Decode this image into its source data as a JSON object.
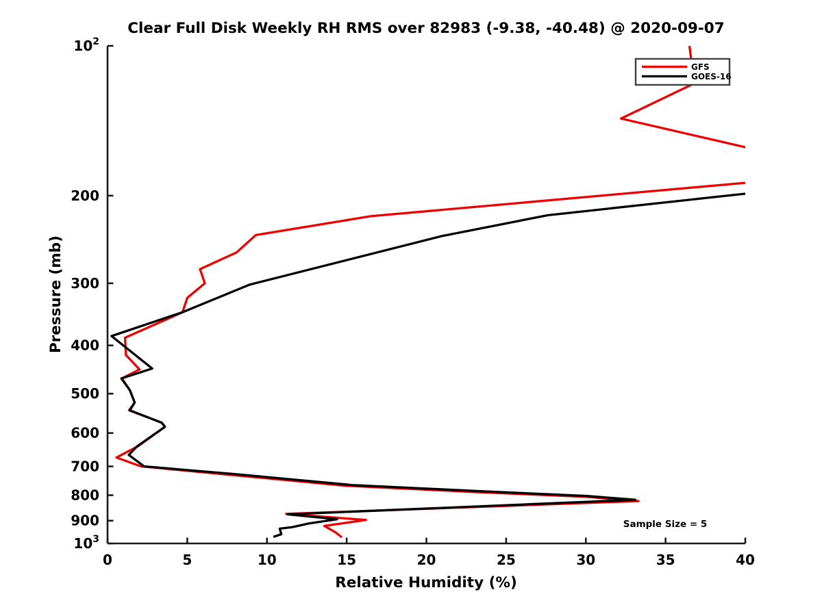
{
  "chart_data": {
    "type": "line",
    "title": "Clear Full Disk Weekly RH RMS over 82983 (-9.38, -40.48) @ 2020-09-07",
    "xlabel": "Relative Humidity (%)",
    "ylabel": "Pressure (mb)",
    "annotation": "Sample Size = 5",
    "xlim": [
      0,
      40
    ],
    "ylim_pressure_mb": [
      100,
      1000
    ],
    "y_scale": "log",
    "y_inverted": true,
    "grid": false,
    "legend_position": "top-right",
    "x_ticks": [
      0,
      5,
      10,
      15,
      20,
      25,
      30,
      35,
      40
    ],
    "x_tick_labels": [
      "0",
      "5",
      "10",
      "15",
      "20",
      "25",
      "30",
      "35",
      "40"
    ],
    "y_ticks": [
      100,
      200,
      300,
      400,
      500,
      600,
      700,
      800,
      900,
      1000
    ],
    "y_tick_labels": [
      "10^2",
      "200",
      "300",
      "400",
      "500",
      "600",
      "700",
      "800",
      "900",
      "10^3"
    ],
    "series": [
      {
        "name": "GFS",
        "color": "#EE0000",
        "points_pressure_rh": [
          [
            100,
            36.5
          ],
          [
            119,
            36.8
          ],
          [
            140,
            32.2
          ],
          [
            180,
            47.0
          ],
          [
            220,
            16.5
          ],
          [
            240,
            9.3
          ],
          [
            260,
            8.1
          ],
          [
            281,
            5.8
          ],
          [
            300,
            6.1
          ],
          [
            321,
            5.0
          ],
          [
            343,
            4.7
          ],
          [
            386,
            1.1
          ],
          [
            418,
            1.15
          ],
          [
            447,
            2.0
          ],
          [
            466,
            0.9
          ],
          [
            492,
            1.4
          ],
          [
            521,
            1.7
          ],
          [
            540,
            1.35
          ],
          [
            572,
            3.4
          ],
          [
            583,
            3.6
          ],
          [
            638,
            1.9
          ],
          [
            672,
            0.56
          ],
          [
            700,
            2.1
          ],
          [
            727,
            7.5
          ],
          [
            766,
            15.0
          ],
          [
            788,
            23.0
          ],
          [
            806,
            30.0
          ],
          [
            822,
            33.3
          ],
          [
            872,
            11.2
          ],
          [
            897,
            16.2
          ],
          [
            922,
            13.6
          ],
          [
            950,
            14.3
          ],
          [
            972,
            14.7
          ]
        ]
      },
      {
        "name": "GOES-16",
        "color": "#000000",
        "points_pressure_rh": [
          [
            195,
            42.0
          ],
          [
            219,
            27.6
          ],
          [
            241,
            21.0
          ],
          [
            302,
            8.9
          ],
          [
            343,
            4.7
          ],
          [
            383,
            0.25
          ],
          [
            445,
            2.8
          ],
          [
            466,
            0.87
          ],
          [
            492,
            1.4
          ],
          [
            521,
            1.7
          ],
          [
            540,
            1.4
          ],
          [
            572,
            3.4
          ],
          [
            583,
            3.6
          ],
          [
            638,
            1.85
          ],
          [
            664,
            1.33
          ],
          [
            700,
            2.3
          ],
          [
            725,
            7.9
          ],
          [
            763,
            15.3
          ],
          [
            785,
            23.4
          ],
          [
            803,
            30.1
          ],
          [
            817,
            33.1
          ],
          [
            874,
            11.3
          ],
          [
            894,
            14.4
          ],
          [
            912,
            12.6
          ],
          [
            927,
            11.6
          ],
          [
            934,
            10.8
          ],
          [
            958,
            10.9
          ],
          [
            970,
            10.4
          ]
        ]
      }
    ]
  }
}
